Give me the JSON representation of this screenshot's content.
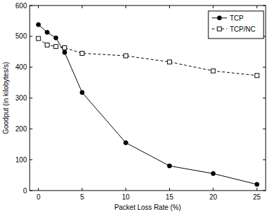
{
  "chart_data": {
    "type": "line",
    "x_label": "Packet Loss Rate (%)",
    "y_label": "Goodput (in kilobytes/s)",
    "x": [
      0,
      1,
      2,
      3,
      5,
      10,
      15,
      20,
      25
    ],
    "series": [
      {
        "name": "TCP",
        "color": "#000000",
        "marker": "circle",
        "line_style": "solid",
        "values": [
          538,
          513,
          495,
          448,
          318,
          155,
          80,
          55,
          20
        ]
      },
      {
        "name": "TCP/NC",
        "color": "#000000",
        "marker": "square",
        "line_style": "dashed",
        "values": [
          493,
          472,
          467,
          463,
          445,
          437,
          417,
          388,
          373
        ]
      }
    ],
    "xlim": [
      -1,
      26
    ],
    "xticks": [
      0,
      5,
      10,
      15,
      20,
      25
    ],
    "ylim": [
      0,
      600
    ],
    "yticks": [
      0,
      100,
      200,
      300,
      400,
      500,
      600
    ],
    "grid": false,
    "legend": "upper right"
  }
}
